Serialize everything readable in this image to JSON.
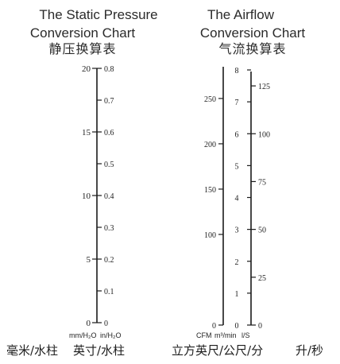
{
  "chart_data": [
    {
      "type": "nomogram",
      "title_en_line1": "The Static Pressure",
      "title_en_line2": "Conversion Chart",
      "title_cn": "静压换算表",
      "scales": [
        {
          "name": "mm/H2O",
          "unit_label": "mm/H₂O",
          "range": [
            0,
            20
          ],
          "major_ticks": [
            0,
            5,
            10,
            15,
            20
          ]
        },
        {
          "name": "in/H2O",
          "unit_label": "in/H₂O",
          "range": [
            0,
            0.8
          ],
          "major_ticks": [
            "0",
            "0.1",
            "0.2",
            "0.3",
            "0.4",
            "0.5",
            "0.6",
            "0.7",
            "0.8"
          ]
        }
      ],
      "bottom_label_left": "毫米/水柱",
      "bottom_label_right": "英寸/水柱"
    },
    {
      "type": "nomogram",
      "title_en_line1": "The Airflow",
      "title_en_line2": "Conversion Chart",
      "title_cn": "气流换算表",
      "scales": [
        {
          "name": "CFM",
          "unit_label": "CFM",
          "range": [
            0,
            285
          ],
          "major_ticks": [
            0,
            100,
            150,
            200,
            250
          ]
        },
        {
          "name": "m3/min",
          "unit_label": "m³/min",
          "range": [
            0,
            8
          ],
          "major_ticks": [
            0,
            1,
            2,
            3,
            4,
            5,
            6,
            7,
            8
          ]
        },
        {
          "name": "l/S",
          "unit_label": "l/S",
          "range": [
            0,
            135
          ],
          "major_ticks": [
            0,
            25,
            50,
            75,
            100,
            125
          ]
        }
      ],
      "bottom_label_left": "立方英尺/公尺/分",
      "bottom_label_right": "升/秒"
    }
  ]
}
